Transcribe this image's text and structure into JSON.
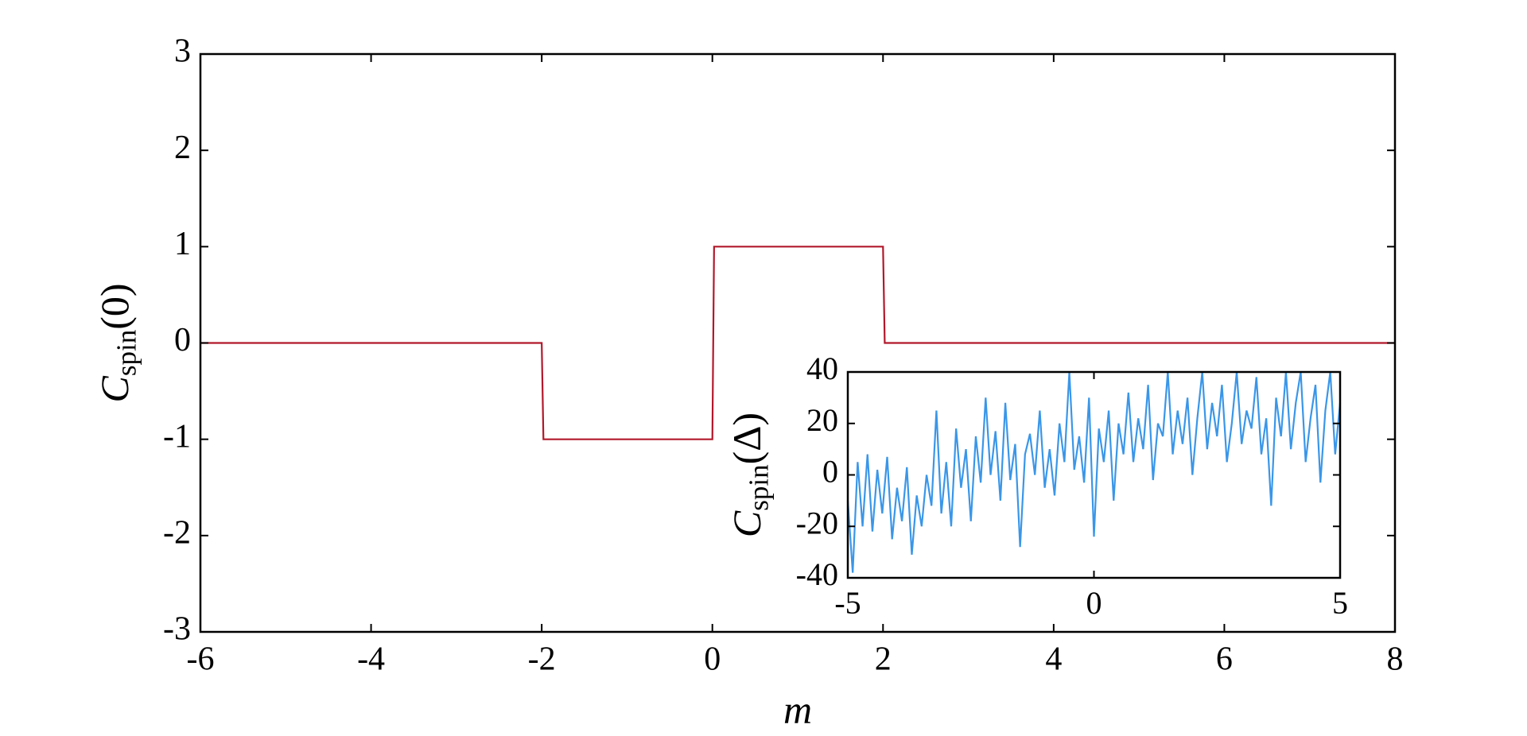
{
  "chart_data": [
    {
      "type": "line",
      "xlabel": "m",
      "ylabel": {
        "symbol": "C",
        "subscript": "spin",
        "argument": "(0)"
      },
      "x": [
        -6,
        -2,
        -1.98,
        0,
        0.02,
        2,
        2.02,
        8
      ],
      "series": [
        {
          "color": "#b2182b",
          "values": [
            0,
            0,
            -1,
            -1,
            1,
            1,
            0,
            0
          ]
        }
      ],
      "xlim": [
        -6,
        8
      ],
      "xticks": [
        -6,
        -4,
        -2,
        0,
        2,
        4,
        6,
        8
      ],
      "ylim": [
        -3,
        3
      ],
      "yticks": [
        -3,
        -2,
        -1,
        0,
        1,
        2,
        3
      ],
      "grid": false
    },
    {
      "type": "line",
      "ylabel": {
        "symbol": "C",
        "subscript": "spin",
        "argument": "(Δ)"
      },
      "x": [
        -5,
        -4.9,
        -4.8,
        -4.7,
        -4.6,
        -4.5,
        -4.4,
        -4.3,
        -4.2,
        -4.1,
        -4,
        -3.9,
        -3.8,
        -3.7,
        -3.6,
        -3.5,
        -3.4,
        -3.3,
        -3.2,
        -3.1,
        -3,
        -2.9,
        -2.8,
        -2.7,
        -2.6,
        -2.5,
        -2.4,
        -2.3,
        -2.2,
        -2.1,
        -2,
        -1.9,
        -1.8,
        -1.7,
        -1.6,
        -1.5,
        -1.4,
        -1.3,
        -1.2,
        -1.1,
        -1,
        -0.9,
        -0.8,
        -0.7,
        -0.6,
        -0.5,
        -0.4,
        -0.3,
        -0.2,
        -0.1,
        0,
        0.1,
        0.2,
        0.3,
        0.4,
        0.5,
        0.6,
        0.7,
        0.8,
        0.9,
        1,
        1.1,
        1.2,
        1.3,
        1.4,
        1.5,
        1.6,
        1.7,
        1.8,
        1.9,
        2,
        2.1,
        2.2,
        2.3,
        2.4,
        2.5,
        2.6,
        2.7,
        2.8,
        2.9,
        3,
        3.1,
        3.2,
        3.3,
        3.4,
        3.5,
        3.6,
        3.7,
        3.8,
        3.9,
        4,
        4.1,
        4.2,
        4.3,
        4.4,
        4.5,
        4.6,
        4.7,
        4.8,
        4.9,
        5
      ],
      "series": [
        {
          "color": "#3a96e8",
          "values": [
            -10,
            -38,
            5,
            -20,
            8,
            -22,
            2,
            -15,
            7,
            -25,
            -5,
            -18,
            3,
            -31,
            -8,
            -20,
            0,
            -12,
            25,
            -15,
            5,
            -20,
            18,
            -5,
            10,
            -18,
            15,
            -3,
            30,
            0,
            17,
            -10,
            28,
            -2,
            12,
            -28,
            8,
            16,
            0,
            25,
            -5,
            10,
            -8,
            20,
            5,
            40,
            2,
            15,
            -3,
            30,
            -24,
            18,
            5,
            25,
            -10,
            20,
            8,
            32,
            5,
            22,
            10,
            35,
            -2,
            20,
            15,
            40,
            8,
            25,
            12,
            30,
            0,
            22,
            40,
            10,
            28,
            15,
            35,
            5,
            20,
            40,
            12,
            25,
            18,
            38,
            8,
            22,
            -12,
            30,
            15,
            40,
            10,
            28,
            40,
            5,
            22,
            35,
            -3,
            25,
            40,
            8,
            28
          ]
        }
      ],
      "xlim": [
        -5,
        5
      ],
      "xticks": [
        -5,
        0,
        5
      ],
      "ylim": [
        -40,
        40
      ],
      "yticks": [
        -40,
        -20,
        0,
        20,
        40
      ],
      "grid": false
    }
  ]
}
